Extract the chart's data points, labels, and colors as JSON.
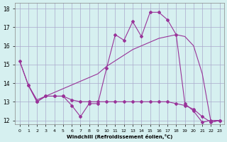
{
  "xlabel": "Windchill (Refroidissement éolien,°C)",
  "line_color": "#993399",
  "bg_color": "#d6f0f0",
  "grid_color": "#aaaacc",
  "ylim": [
    11.8,
    18.3
  ],
  "yticks": [
    12,
    13,
    14,
    15,
    16,
    17,
    18
  ],
  "xticks": [
    0,
    1,
    2,
    3,
    4,
    5,
    6,
    7,
    8,
    9,
    10,
    11,
    12,
    13,
    14,
    15,
    16,
    17,
    18,
    19,
    20,
    21,
    22,
    23
  ],
  "curve_spiky": [
    15.2,
    13.9,
    13.0,
    13.3,
    13.3,
    13.3,
    12.8,
    12.2,
    12.9,
    12.9,
    14.8,
    16.6,
    16.3,
    17.3,
    16.5,
    17.8,
    17.8,
    17.4,
    16.6,
    12.9,
    12.5,
    11.9,
    12.0,
    12.0
  ],
  "curve_trend": [
    15.2,
    13.9,
    13.1,
    13.3,
    13.5,
    13.7,
    13.9,
    14.1,
    14.3,
    14.5,
    14.9,
    15.2,
    15.5,
    15.8,
    16.0,
    16.2,
    16.4,
    16.5,
    16.6,
    16.5,
    16.0,
    14.5,
    11.9,
    12.0
  ],
  "curve_flat": [
    null,
    13.9,
    13.0,
    13.3,
    13.3,
    13.3,
    13.1,
    13.0,
    13.0,
    13.0,
    13.0,
    13.0,
    13.0,
    13.0,
    13.0,
    13.0,
    13.0,
    13.0,
    12.9,
    12.8,
    12.6,
    12.2,
    11.9,
    12.0
  ]
}
